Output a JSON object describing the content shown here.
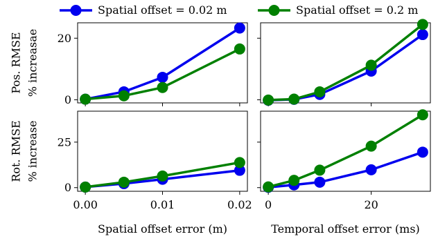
{
  "legend": {
    "entries": [
      {
        "label": "Spatial offset = 0.02 m",
        "color": "#0000ee"
      },
      {
        "label": "Spatial offset = 0.2 m",
        "color": "#008000"
      }
    ]
  },
  "chart_data": [
    {
      "type": "line",
      "ylabel": [
        "Pos. RMSE",
        "% increasae"
      ],
      "xlabel": "",
      "xlim": [
        -0.001,
        0.021
      ],
      "ylim": [
        -1,
        25
      ],
      "yticks": [
        0,
        20
      ],
      "ytick_labels": [
        "0",
        "20"
      ],
      "xticks": [
        0,
        0.01,
        0.02
      ],
      "xtick_labels": [],
      "series": [
        {
          "name": "Spatial offset = 0.02 m",
          "color": "#0000ee",
          "x": [
            0,
            0.005,
            0.01,
            0.02
          ],
          "y": [
            0.2,
            2.6,
            7.3,
            23.3
          ]
        },
        {
          "name": "Spatial offset = 0.2 m",
          "color": "#008000",
          "x": [
            0,
            0.005,
            0.01,
            0.02
          ],
          "y": [
            0.2,
            1.3,
            4.0,
            16.5
          ]
        }
      ]
    },
    {
      "type": "line",
      "ylabel": [],
      "xlabel": "",
      "xlim": [
        -1.5,
        31.5
      ],
      "ylim": [
        -1,
        33
      ],
      "yticks": [],
      "ytick_labels": [],
      "xticks": [
        0,
        20
      ],
      "xtick_labels": [],
      "series": [
        {
          "name": "Spatial offset = 0.02 m",
          "color": "#0000ee",
          "x": [
            0,
            5,
            10,
            20,
            30
          ],
          "y": [
            0.1,
            0.5,
            2.6,
            12.5,
            28.0
          ]
        },
        {
          "name": "Spatial offset = 0.2 m",
          "color": "#008000",
          "x": [
            0,
            5,
            10,
            20,
            30
          ],
          "y": [
            0.2,
            0.6,
            3.7,
            15.0,
            32.3
          ]
        }
      ]
    },
    {
      "type": "line",
      "ylabel": [
        "Rot. RMSE",
        "% increase"
      ],
      "xlabel": "Spatial offset error (m)",
      "xlim": [
        -0.001,
        0.021
      ],
      "ylim": [
        -2,
        42
      ],
      "yticks": [
        0,
        25
      ],
      "ytick_labels": [
        "0",
        "25"
      ],
      "xticks": [
        0,
        0.01,
        0.02
      ],
      "xtick_labels": [
        "0.00",
        "0.01",
        "0.02"
      ],
      "series": [
        {
          "name": "Spatial offset = 0.02 m",
          "color": "#0000ee",
          "x": [
            0,
            0.005,
            0.01,
            0.02
          ],
          "y": [
            0.3,
            2.2,
            4.6,
            9.5
          ]
        },
        {
          "name": "Spatial offset = 0.2 m",
          "color": "#008000",
          "x": [
            0,
            0.005,
            0.01,
            0.02
          ],
          "y": [
            0.3,
            3.0,
            6.4,
            13.8
          ]
        }
      ]
    },
    {
      "type": "line",
      "ylabel": [],
      "xlabel": "Temporal offset error (ms)",
      "xlim": [
        -1.5,
        31.5
      ],
      "ylim": [
        -2,
        42
      ],
      "yticks": [],
      "ytick_labels": [],
      "xticks": [
        0,
        20
      ],
      "xtick_labels": [
        "0",
        "20"
      ],
      "series": [
        {
          "name": "Spatial offset = 0.02 m",
          "color": "#0000ee",
          "x": [
            0,
            5,
            10,
            20,
            30
          ],
          "y": [
            0.2,
            1.5,
            3.0,
            9.8,
            19.5
          ]
        },
        {
          "name": "Spatial offset = 0.2 m",
          "color": "#008000",
          "x": [
            0,
            5,
            10,
            20,
            30
          ],
          "y": [
            0.4,
            4.0,
            9.6,
            22.8,
            40.0
          ]
        }
      ]
    }
  ]
}
